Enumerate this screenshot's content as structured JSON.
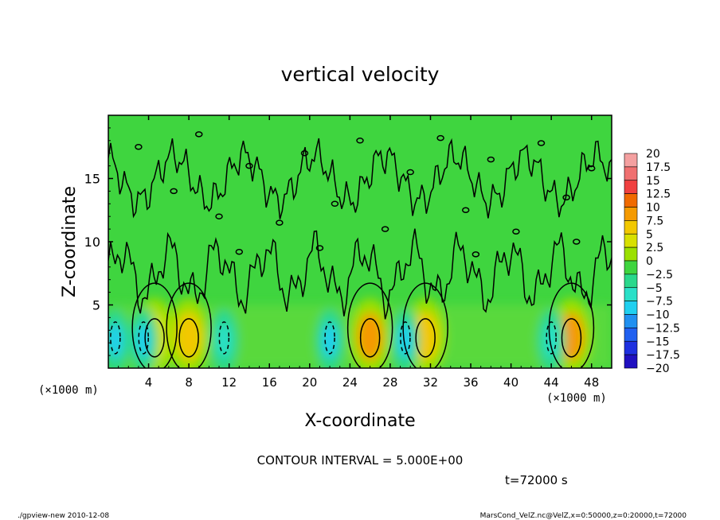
{
  "chart_data": {
    "type": "heatmap",
    "title": "vertical velocity",
    "xlabel": "X-coordinate",
    "ylabel": "Z-coordinate",
    "x_unit": "(×1000 m)",
    "y_unit": "(×1000 m)",
    "xlim": [
      0,
      50
    ],
    "ylim": [
      0,
      20
    ],
    "x_ticks": [
      "4",
      "8",
      "12",
      "16",
      "20",
      "24",
      "28",
      "32",
      "36",
      "40",
      "44",
      "48"
    ],
    "y_ticks": [
      "5",
      "10",
      "15"
    ],
    "contour_interval": "CONTOUR INTERVAL = 5.000E+00",
    "time_label": "t=72000 s",
    "colorbar": {
      "labels": [
        "20",
        "17.5",
        "15",
        "12.5",
        "10",
        "7.5",
        "5",
        "2.5",
        "0",
        "−2.5",
        "−5",
        "−7.5",
        "−10",
        "−12.5",
        "−15",
        "−17.5",
        "−20"
      ],
      "colors": [
        "#f4a0a0",
        "#f07070",
        "#f04040",
        "#f06a00",
        "#f59a00",
        "#f2c800",
        "#d8e000",
        "#9be000",
        "#3fd53f",
        "#2ad88c",
        "#2ae0c8",
        "#20d0f0",
        "#2090f0",
        "#2060f0",
        "#1e30e0",
        "#2010c0",
        "#7000c0"
      ]
    },
    "updraft_cores_x": [
      4.6,
      8,
      26,
      31.5,
      46
    ],
    "updraft_peak_w": [
      5,
      7.5,
      10,
      7.5,
      10
    ],
    "downdraft_cores_x": [
      0.7,
      3.5,
      11.5,
      22,
      29.5,
      44
    ],
    "downdraft_peak_w": [
      -7.5,
      -7.5,
      -5,
      -7.5,
      -7.5,
      -5
    ]
  },
  "footer": {
    "left": "./gpview-new   2010-12-08",
    "right": "MarsCond_VelZ.nc@VelZ,x=0:50000,z=0:20000,t=72000"
  }
}
